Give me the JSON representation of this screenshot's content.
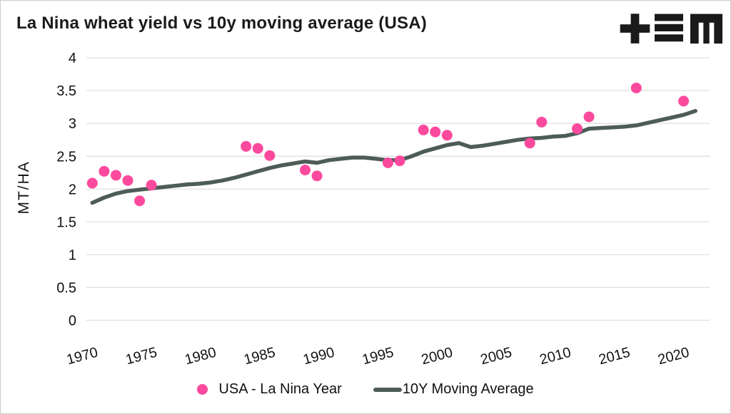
{
  "header": {
    "title": "La Nina wheat yield vs 10y moving average (USA)",
    "logo_name": "TEM"
  },
  "colors": {
    "scatter": "#FB4A9D",
    "line": "#4D5C58",
    "grid": "#E2E2E2",
    "text": "#121212",
    "logo": "#1A1A1A"
  },
  "chart_data": {
    "type": "scatter",
    "title": "La Nina wheat yield vs 10y moving average (USA)",
    "xlabel": "",
    "ylabel": "MT/HA",
    "ylim": [
      0,
      4
    ],
    "yticks": [
      0,
      0.5,
      1,
      1.5,
      2,
      2.5,
      3,
      3.5,
      4
    ],
    "xticks": [
      1970,
      1975,
      1980,
      1985,
      1990,
      1995,
      2000,
      2005,
      2010,
      2015,
      2020
    ],
    "grid": "horizontal-only",
    "legend_position": "bottom-center",
    "series": [
      {
        "name": "USA - La Nina Year",
        "type": "scatter",
        "color": "#FB4A9D",
        "points": [
          {
            "x": 1970,
            "y": 2.09
          },
          {
            "x": 1971,
            "y": 2.27
          },
          {
            "x": 1972,
            "y": 2.21
          },
          {
            "x": 1973,
            "y": 2.13
          },
          {
            "x": 1974,
            "y": 1.82
          },
          {
            "x": 1975,
            "y": 2.06
          },
          {
            "x": 1983,
            "y": 2.65
          },
          {
            "x": 1984,
            "y": 2.62
          },
          {
            "x": 1985,
            "y": 2.51
          },
          {
            "x": 1988,
            "y": 2.29
          },
          {
            "x": 1989,
            "y": 2.2
          },
          {
            "x": 1995,
            "y": 2.4
          },
          {
            "x": 1996,
            "y": 2.43
          },
          {
            "x": 1998,
            "y": 2.9
          },
          {
            "x": 1999,
            "y": 2.87
          },
          {
            "x": 2000,
            "y": 2.82
          },
          {
            "x": 2007,
            "y": 2.7
          },
          {
            "x": 2008,
            "y": 3.02
          },
          {
            "x": 2011,
            "y": 2.92
          },
          {
            "x": 2012,
            "y": 3.1
          },
          {
            "x": 2016,
            "y": 3.54
          },
          {
            "x": 2020,
            "y": 3.34
          }
        ]
      },
      {
        "name": "10Y Moving Average",
        "type": "line",
        "color": "#4D5C58",
        "x_start": 1970,
        "values": [
          1.79,
          1.87,
          1.93,
          1.97,
          1.99,
          2.01,
          2.03,
          2.05,
          2.07,
          2.08,
          2.1,
          2.13,
          2.17,
          2.22,
          2.27,
          2.32,
          2.36,
          2.39,
          2.42,
          2.4,
          2.44,
          2.46,
          2.48,
          2.48,
          2.46,
          2.44,
          2.44,
          2.5,
          2.57,
          2.62,
          2.67,
          2.7,
          2.64,
          2.66,
          2.69,
          2.72,
          2.75,
          2.77,
          2.78,
          2.8,
          2.81,
          2.85,
          2.92,
          2.93,
          2.94,
          2.95,
          2.97,
          3.01,
          3.05,
          3.09,
          3.13,
          3.19
        ]
      }
    ]
  }
}
